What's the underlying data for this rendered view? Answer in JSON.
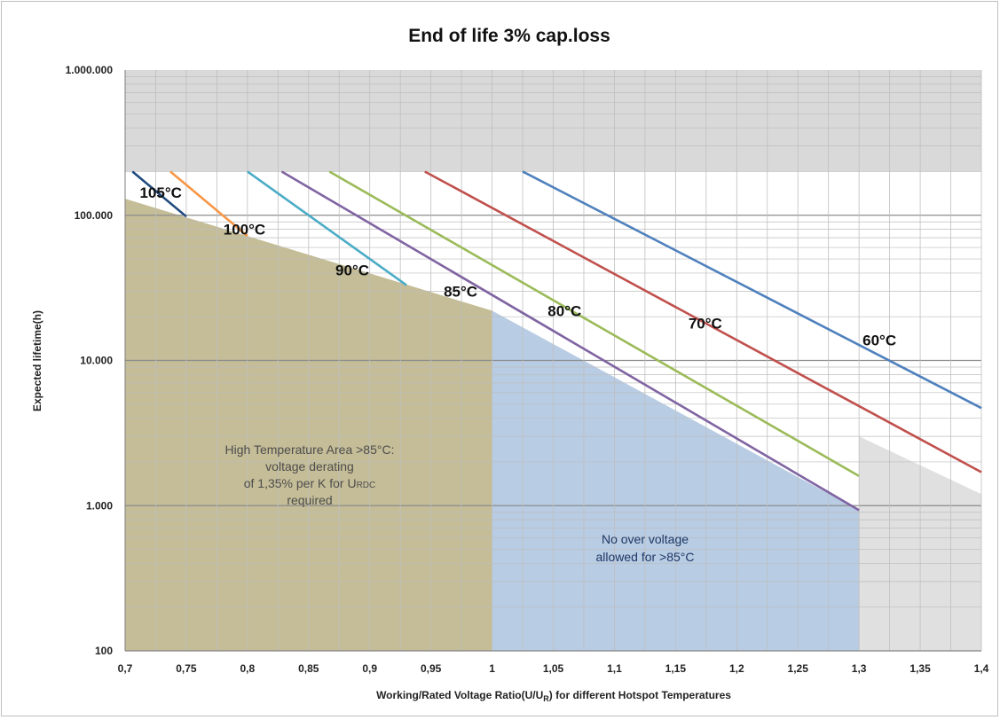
{
  "chart_data": {
    "type": "line",
    "title": "End of life 3% cap.loss",
    "ylabel": "Expected lifetime(h)",
    "xlabel_main": "Working/Rated Voltage Ratio(U/U",
    "xlabel_sub": "R",
    "xlabel_tail": ") for different Hotspot Temperatures",
    "y_scale": "log",
    "xlim": [
      0.7,
      1.4
    ],
    "ylim": [
      100,
      1000000
    ],
    "grid": true,
    "x_ticks": [
      {
        "v": 0.7,
        "label": "0,7"
      },
      {
        "v": 0.75,
        "label": "0,75"
      },
      {
        "v": 0.8,
        "label": "0,8"
      },
      {
        "v": 0.85,
        "label": "0,85"
      },
      {
        "v": 0.9,
        "label": "0,9"
      },
      {
        "v": 0.95,
        "label": "0,95"
      },
      {
        "v": 1.0,
        "label": "1"
      },
      {
        "v": 1.05,
        "label": "1,05"
      },
      {
        "v": 1.1,
        "label": "1,1"
      },
      {
        "v": 1.15,
        "label": "1,15"
      },
      {
        "v": 1.2,
        "label": "1,2"
      },
      {
        "v": 1.25,
        "label": "1,25"
      },
      {
        "v": 1.3,
        "label": "1,3"
      },
      {
        "v": 1.35,
        "label": "1,35"
      },
      {
        "v": 1.4,
        "label": "1,4"
      }
    ],
    "y_ticks": [
      {
        "v": 100,
        "label": "100"
      },
      {
        "v": 1000,
        "label": "1.000"
      },
      {
        "v": 10000,
        "label": "10.000"
      },
      {
        "v": 100000,
        "label": "100.000"
      },
      {
        "v": 1000000,
        "label": "1.000.000"
      }
    ],
    "series": [
      {
        "name": "60°C",
        "color": "#4f81bd",
        "x": [
          1.025,
          1.4
        ],
        "y": [
          200000,
          4700
        ]
      },
      {
        "name": "70°C",
        "color": "#c0504d",
        "x": [
          0.945,
          1.4
        ],
        "y": [
          200000,
          1700
        ]
      },
      {
        "name": "80°C",
        "color": "#9bbb59",
        "x": [
          0.867,
          1.3
        ],
        "y": [
          200000,
          1600
        ]
      },
      {
        "name": "85°C",
        "color": "#8064a2",
        "x": [
          0.828,
          1.3
        ],
        "y": [
          200000,
          930
        ]
      },
      {
        "name": "90°C",
        "color": "#4bacc6",
        "x": [
          0.8,
          0.93
        ],
        "y": [
          200000,
          33000
        ]
      },
      {
        "name": "100°C",
        "color": "#f79646",
        "x": [
          0.737,
          0.8
        ],
        "y": [
          200000,
          72000
        ]
      },
      {
        "name": "105°C",
        "color": "#1f497d",
        "x": [
          0.706,
          0.75
        ],
        "y": [
          200000,
          98000
        ]
      }
    ],
    "regions": [
      {
        "kind": "gray-top",
        "color": "#d9d9d9",
        "x": [
          0.7,
          1.4
        ],
        "y_from": 200000,
        "y_to": 1000000
      },
      {
        "kind": "high-temp",
        "color": "#c4bd97",
        "x": [
          0.7,
          1.0
        ],
        "y_top": [
          130000,
          22000
        ]
      },
      {
        "kind": "no-overvoltage",
        "color": "#b8cce4",
        "x": [
          1.0,
          1.3
        ],
        "y_top": [
          22000,
          930
        ]
      },
      {
        "kind": "gray-right",
        "color": "#e0e0e0",
        "x": [
          1.3,
          1.4
        ],
        "y_top": [
          3000,
          1200
        ]
      }
    ],
    "region_text_high": [
      "High Temperature Area >85°C:",
      "voltage derating",
      "of 1,35% per K for U",
      "required"
    ],
    "region_text_high_sub": "RDC",
    "region_text_no_over": [
      "No over voltage",
      "allowed for >85°C"
    ]
  }
}
